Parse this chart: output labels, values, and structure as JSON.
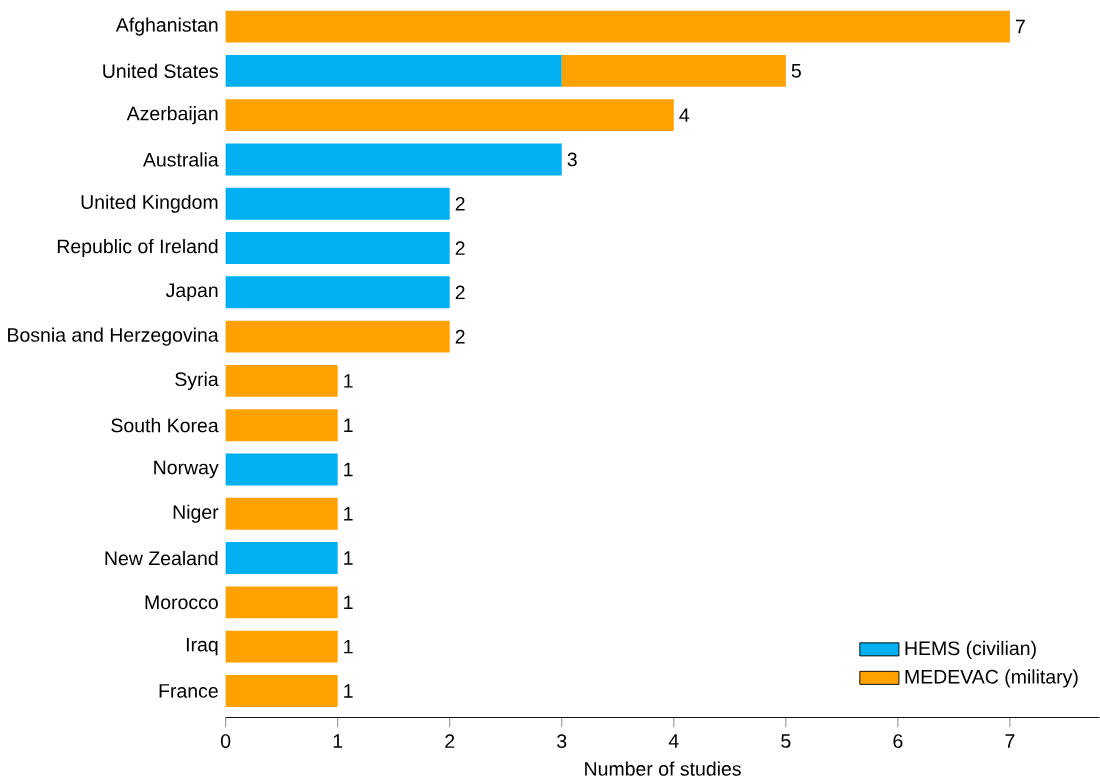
{
  "chart_data": {
    "type": "bar",
    "orientation": "horizontal",
    "stacked": true,
    "xlabel": "Number of studies",
    "categories": [
      "Afghanistan",
      "United States",
      "Azerbaijan",
      "Australia",
      "United Kingdom",
      "Republic of Ireland",
      "Japan",
      "Bosnia and Herzegovina",
      "Syria",
      "South Korea",
      "Norway",
      "Niger",
      "New Zealand",
      "Morocco",
      "Iraq",
      "France"
    ],
    "series": [
      {
        "name": "HEMS (civilian)",
        "color": "#00b0f0",
        "values": [
          null,
          3,
          null,
          3,
          2,
          2,
          2,
          null,
          null,
          null,
          1,
          null,
          1,
          null,
          null,
          null
        ]
      },
      {
        "name": "MEDEVAC (military)",
        "color": "#ffa200",
        "values": [
          7,
          2,
          4,
          null,
          null,
          null,
          null,
          2,
          1,
          1,
          null,
          1,
          null,
          1,
          1,
          1
        ]
      }
    ],
    "totals": [
      "7",
      "5",
      "4",
      "3",
      "2",
      "2",
      "2",
      "2",
      "1",
      "1",
      "1",
      "1",
      "1",
      "1",
      "1",
      "1"
    ],
    "xlim": [
      0,
      7.8
    ],
    "xticks": [
      0,
      1,
      2,
      3,
      4,
      5,
      6,
      7
    ],
    "grid": false,
    "legend": "bottom right"
  }
}
